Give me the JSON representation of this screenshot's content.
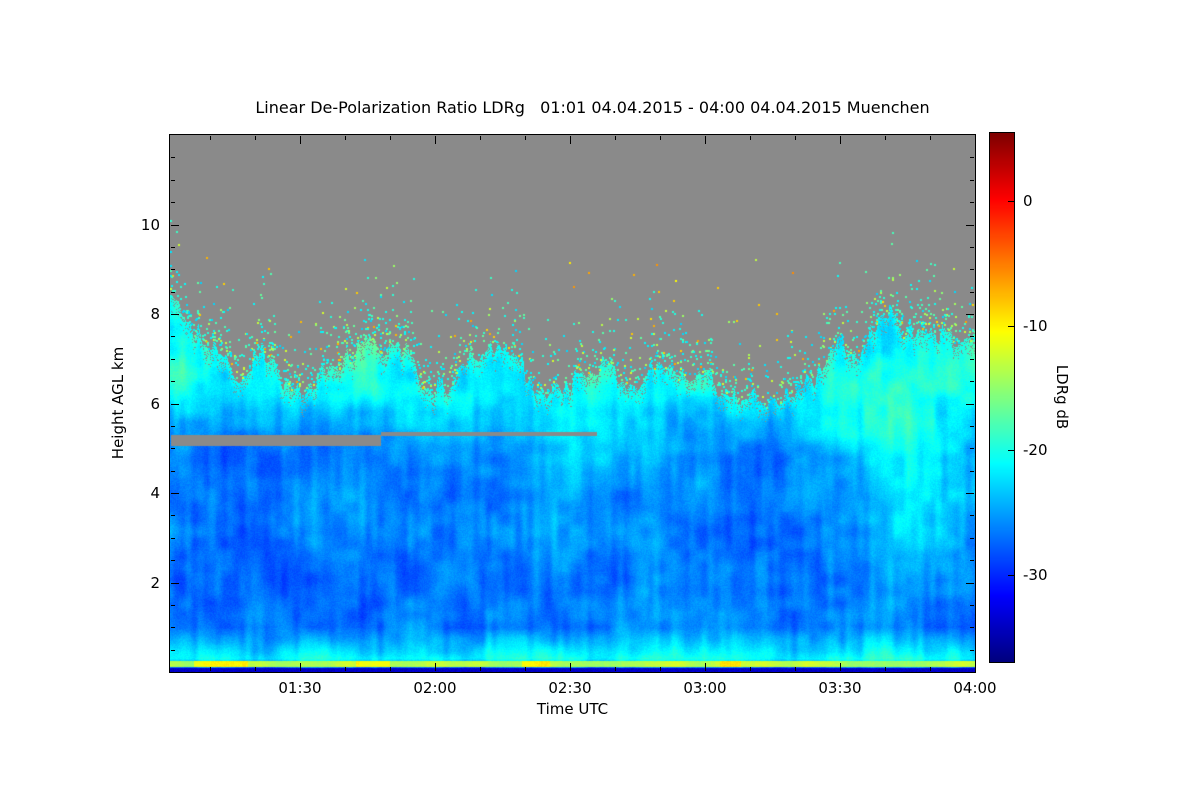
{
  "chart_data": {
    "type": "heatmap",
    "title": "Linear De-Polarization Ratio LDRg   01:01 04.04.2015 - 04:00 04.04.2015 Muenchen",
    "xlabel": "Time UTC",
    "ylabel": "Height AGL km",
    "colorbar_label": "LDRg dB",
    "colormap": "jet",
    "no_data_color": "#8a8a8a",
    "x_range_hours": [
      1.0167,
      4.0
    ],
    "y_range_km": [
      0,
      12
    ],
    "value_range_db": [
      -37,
      5.5
    ],
    "x_ticks": [
      {
        "hour": 1.5,
        "label": "01:30"
      },
      {
        "hour": 2.0,
        "label": "02:00"
      },
      {
        "hour": 2.5,
        "label": "02:30"
      },
      {
        "hour": 3.0,
        "label": "03:00"
      },
      {
        "hour": 3.5,
        "label": "03:30"
      },
      {
        "hour": 4.0,
        "label": "04:00"
      }
    ],
    "y_ticks": [
      {
        "km": 2,
        "label": "2"
      },
      {
        "km": 4,
        "label": "4"
      },
      {
        "km": 6,
        "label": "6"
      },
      {
        "km": 8,
        "label": "8"
      },
      {
        "km": 10,
        "label": "10"
      }
    ],
    "colorbar_ticks": [
      {
        "db": 0,
        "label": "0"
      },
      {
        "db": -10,
        "label": "-10"
      },
      {
        "db": -20,
        "label": "-20"
      },
      {
        "db": -30,
        "label": "-30"
      }
    ],
    "grid": {
      "hours": [
        1.02,
        1.25,
        1.5,
        1.75,
        2.0,
        2.25,
        2.5,
        2.75,
        3.0,
        3.25,
        3.5,
        3.75,
        4.0
      ],
      "heights_km": [
        0,
        0.3,
        1,
        2,
        3,
        4,
        4.8,
        5.3,
        5.8,
        6.2,
        6.8,
        7.4,
        8.0
      ],
      "values_db": [
        [
          -30,
          -30,
          -30,
          -30,
          -30,
          -30,
          -30,
          -30,
          -30,
          -30,
          -30,
          -30,
          -30
        ],
        [
          -21,
          -21,
          -20.5,
          -21,
          -20.5,
          -20.5,
          -21,
          -20.5,
          -21,
          -21,
          -20.5,
          -21,
          -21
        ],
        [
          -27,
          -27.5,
          -27,
          -27,
          -26.5,
          -27,
          -27,
          -26.5,
          -27,
          -27,
          -26.5,
          -27,
          -27
        ],
        [
          -27.5,
          -28,
          -27.5,
          -27,
          -27,
          -27,
          -26.5,
          -26.5,
          -27,
          -27,
          -26.5,
          -25.5,
          -26.5
        ],
        [
          -27,
          -27.5,
          -27,
          -26.5,
          -26.5,
          -26.5,
          -26,
          -26,
          -26.5,
          -26.5,
          -26,
          -22.5,
          -26
        ],
        [
          -26.5,
          -27,
          -26.5,
          -26,
          -26,
          -26,
          -24.5,
          -25.5,
          -26,
          -26,
          -25.5,
          -20.5,
          -25.5
        ],
        [
          -26,
          -26.5,
          -26,
          -25.5,
          -25.5,
          -25.5,
          -22.5,
          -25,
          -25.5,
          -25.5,
          -24,
          -19.5,
          -25
        ],
        [
          -25,
          -25.5,
          -25,
          -25,
          -24.5,
          -25,
          -21.5,
          -24,
          -24.5,
          -25,
          -21,
          -19,
          -24
        ],
        [
          -22,
          -24,
          -23.5,
          -23,
          -23,
          -23.5,
          -21,
          -22.5,
          -23,
          -23.5,
          -21.5,
          -19.5,
          -23
        ],
        [
          -20.5,
          -22,
          -21.5,
          -20,
          -21,
          -21.5,
          -21,
          -21.5,
          -21.5,
          -22.5,
          -21,
          -20,
          -21.5
        ],
        [
          -19.5,
          -20.5,
          -21.5,
          -19,
          -21.5,
          -20,
          -22,
          -22,
          -21.5,
          -23,
          -21.5,
          -20.5,
          -20.5
        ],
        [
          -19.5,
          -21,
          -22,
          -19.5,
          -22,
          -21,
          -23,
          -23,
          -22,
          -23,
          -22,
          -20.5,
          -21
        ],
        [
          -20,
          -22,
          -23,
          -21,
          -23,
          -22,
          -23.5,
          -23.5,
          -23,
          -23.5,
          -22.5,
          -21,
          -21.5
        ]
      ]
    },
    "cloud_top": {
      "hours": [
        1.02,
        1.25,
        1.5,
        1.75,
        2.0,
        2.25,
        2.5,
        2.75,
        3.0,
        3.25,
        3.5,
        3.75,
        4.0
      ],
      "km": [
        8.3,
        7.0,
        6.6,
        7.6,
        6.6,
        6.9,
        6.5,
        6.6,
        6.7,
        6.3,
        7.2,
        8.0,
        7.4
      ]
    },
    "gray_slivers": [
      {
        "hours": [
          1.02,
          1.8
        ],
        "km": [
          5.05,
          5.3
        ]
      },
      {
        "hours": [
          1.8,
          2.6
        ],
        "km": [
          5.28,
          5.36
        ]
      }
    ],
    "surface_line": {
      "km": 0.18,
      "half_width_km": 0.07,
      "value_db": -13.5,
      "below_db": -34
    },
    "speckle": {
      "band_km": 1.9,
      "base_probability": 0.07,
      "decay_km": 0.45,
      "values_db": {
        "common": -20,
        "mid": -14,
        "rare": -8
      },
      "density_profile": {
        "hours": [
          1.02,
          1.25,
          1.5,
          1.75,
          2.0,
          2.25,
          2.5,
          2.75,
          3.0,
          3.25,
          3.5,
          3.75,
          4.0
        ],
        "factor": [
          1.2,
          1.4,
          1.5,
          1.5,
          1.2,
          0.8,
          1.0,
          1.3,
          1.2,
          0.7,
          1.3,
          1.5,
          1.2
        ]
      },
      "high_altitude": {
        "max_km": 9.3,
        "probability": 0.0005,
        "value_db": -10
      }
    },
    "noise_db": 1.5
  }
}
